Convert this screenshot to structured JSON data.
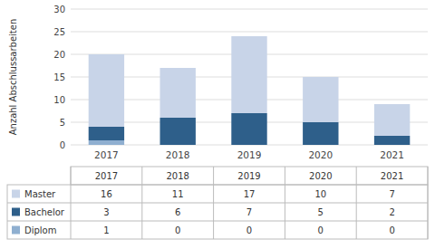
{
  "chart_data": {
    "type": "bar",
    "stacked": true,
    "grid": true,
    "y_label": "Anzahl Abschlussarbeiten",
    "categories": [
      "2017",
      "2018",
      "2019",
      "2020",
      "2021"
    ],
    "series": [
      {
        "name": "Diplom",
        "color": "#8fafd0",
        "values": [
          1,
          0,
          0,
          0,
          0
        ]
      },
      {
        "name": "Bachelor",
        "color": "#2e5f8a",
        "values": [
          3,
          6,
          7,
          5,
          2
        ]
      },
      {
        "name": "Master",
        "color": "#c8d4e8",
        "values": [
          16,
          11,
          17,
          10,
          7
        ]
      }
    ],
    "ylim": [
      0,
      30
    ],
    "yticks": [
      0,
      5,
      10,
      15,
      20,
      25,
      30
    ]
  }
}
